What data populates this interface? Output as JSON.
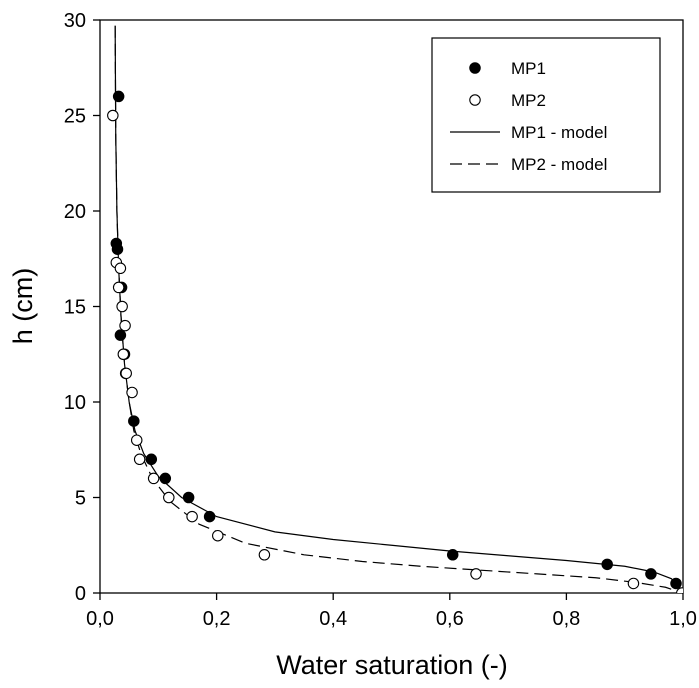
{
  "chart_data": {
    "type": "scatter",
    "xlabel": "Water saturation (-)",
    "ylabel": "h (cm)",
    "xlim": [
      0,
      1
    ],
    "ylim": [
      0,
      30
    ],
    "x_ticks": [
      "0,0",
      "0,2",
      "0,4",
      "0,6",
      "0,8",
      "1,0"
    ],
    "x_tick_values": [
      0,
      0.2,
      0.4,
      0.6,
      0.8,
      1.0
    ],
    "y_ticks": [
      "0",
      "5",
      "10",
      "15",
      "20",
      "25",
      "30"
    ],
    "y_tick_values": [
      0,
      5,
      10,
      15,
      20,
      25,
      30
    ],
    "grid": false,
    "legend_position": "top-right",
    "series": [
      {
        "name": "MP1",
        "kind": "points",
        "marker": "filled-circle",
        "color": "#000000",
        "points": [
          [
            0.032,
            26.0
          ],
          [
            0.028,
            18.3
          ],
          [
            0.03,
            18.0
          ],
          [
            0.037,
            16.0
          ],
          [
            0.035,
            13.5
          ],
          [
            0.042,
            12.5
          ],
          [
            0.044,
            11.5
          ],
          [
            0.058,
            9.0
          ],
          [
            0.088,
            7.0
          ],
          [
            0.112,
            6.0
          ],
          [
            0.152,
            5.0
          ],
          [
            0.188,
            4.0
          ],
          [
            0.605,
            2.0
          ],
          [
            0.87,
            1.5
          ],
          [
            0.945,
            1.0
          ],
          [
            0.988,
            0.5
          ]
        ]
      },
      {
        "name": "MP2",
        "kind": "points",
        "marker": "open-circle",
        "color": "#000000",
        "points": [
          [
            0.022,
            25.0
          ],
          [
            0.028,
            17.3
          ],
          [
            0.035,
            17.0
          ],
          [
            0.032,
            16.0
          ],
          [
            0.038,
            15.0
          ],
          [
            0.043,
            14.0
          ],
          [
            0.04,
            12.5
          ],
          [
            0.045,
            11.5
          ],
          [
            0.055,
            10.5
          ],
          [
            0.063,
            8.0
          ],
          [
            0.068,
            7.0
          ],
          [
            0.092,
            6.0
          ],
          [
            0.118,
            5.0
          ],
          [
            0.158,
            4.0
          ],
          [
            0.202,
            3.0
          ],
          [
            0.282,
            2.0
          ],
          [
            0.645,
            1.0
          ],
          [
            0.915,
            0.5
          ],
          [
            0.998,
            0.0
          ]
        ]
      },
      {
        "name": "MP1 - model",
        "kind": "line",
        "dash": "solid",
        "color": "#000000",
        "points": [
          [
            0.026,
            29.7
          ],
          [
            0.027,
            24.0
          ],
          [
            0.029,
            20.0
          ],
          [
            0.032,
            17.0
          ],
          [
            0.036,
            14.5
          ],
          [
            0.042,
            12.0
          ],
          [
            0.05,
            10.0
          ],
          [
            0.06,
            8.5
          ],
          [
            0.075,
            7.3
          ],
          [
            0.1,
            6.1
          ],
          [
            0.14,
            5.0
          ],
          [
            0.2,
            4.0
          ],
          [
            0.3,
            3.2
          ],
          [
            0.4,
            2.8
          ],
          [
            0.5,
            2.5
          ],
          [
            0.6,
            2.2
          ],
          [
            0.7,
            1.95
          ],
          [
            0.8,
            1.7
          ],
          [
            0.9,
            1.4
          ],
          [
            0.95,
            1.1
          ],
          [
            0.98,
            0.75
          ],
          [
            1.0,
            0.1
          ]
        ]
      },
      {
        "name": "MP2 - model",
        "kind": "line",
        "dash": "dashed",
        "color": "#000000",
        "points": [
          [
            0.026,
            29.7
          ],
          [
            0.027,
            24.0
          ],
          [
            0.029,
            20.0
          ],
          [
            0.032,
            17.0
          ],
          [
            0.036,
            14.5
          ],
          [
            0.042,
            12.0
          ],
          [
            0.05,
            10.0
          ],
          [
            0.058,
            8.5
          ],
          [
            0.07,
            7.3
          ],
          [
            0.09,
            6.0
          ],
          [
            0.12,
            4.8
          ],
          [
            0.17,
            3.6
          ],
          [
            0.25,
            2.6
          ],
          [
            0.35,
            2.0
          ],
          [
            0.45,
            1.65
          ],
          [
            0.55,
            1.4
          ],
          [
            0.65,
            1.2
          ],
          [
            0.75,
            1.0
          ],
          [
            0.85,
            0.8
          ],
          [
            0.92,
            0.55
          ],
          [
            0.97,
            0.3
          ],
          [
            1.0,
            0.0
          ]
        ]
      }
    ]
  }
}
